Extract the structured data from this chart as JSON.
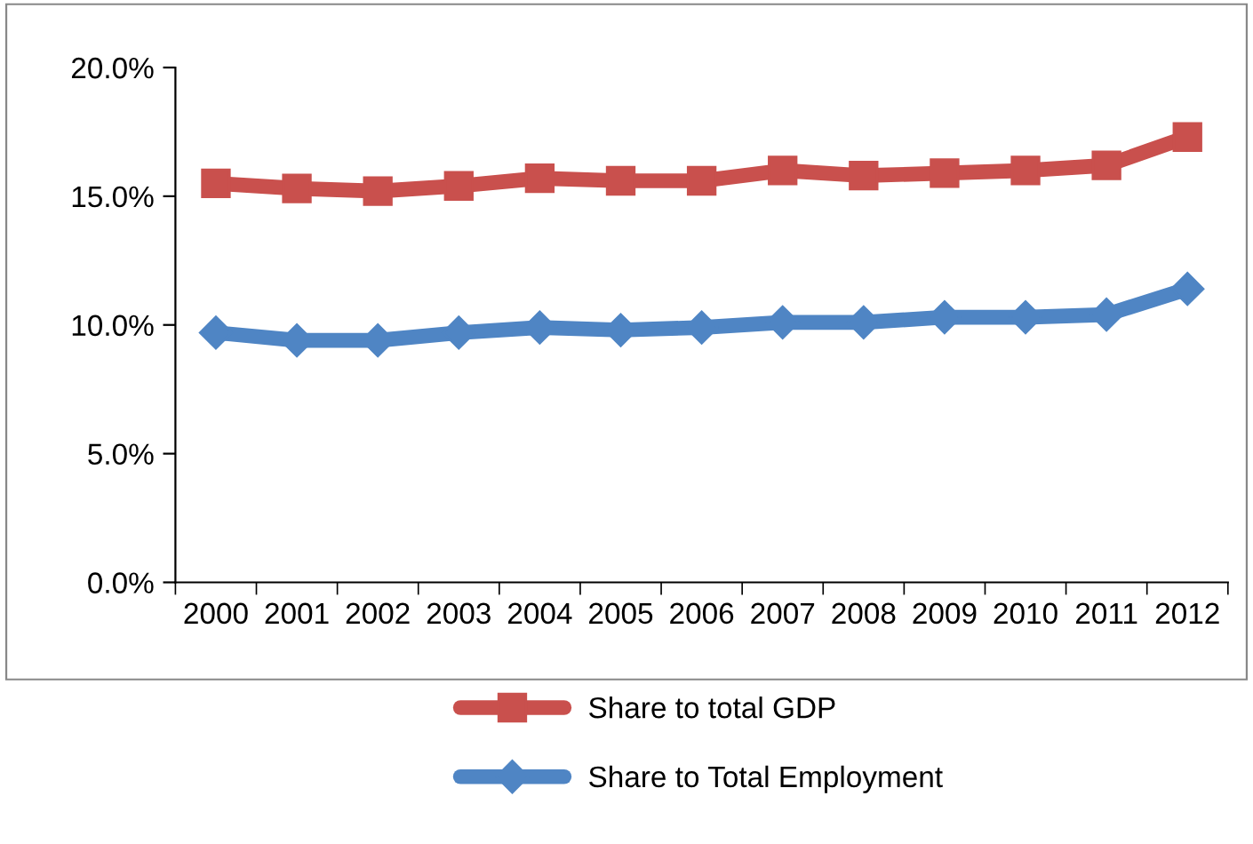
{
  "chart_data": {
    "type": "line",
    "categories": [
      "2000",
      "2001",
      "2002",
      "2003",
      "2004",
      "2005",
      "2006",
      "2007",
      "2008",
      "2009",
      "2010",
      "2011",
      "2012"
    ],
    "series": [
      {
        "name": "Share to total GDP",
        "color": "#c9504d",
        "marker": "square",
        "values": [
          15.5,
          15.3,
          15.2,
          15.4,
          15.7,
          15.6,
          15.6,
          16.0,
          15.8,
          15.9,
          16.0,
          16.2,
          17.3
        ]
      },
      {
        "name": "Share to Total Employment",
        "color": "#4f85c4",
        "marker": "diamond",
        "values": [
          9.7,
          9.4,
          9.4,
          9.7,
          9.9,
          9.8,
          9.9,
          10.1,
          10.1,
          10.3,
          10.3,
          10.4,
          11.4
        ]
      }
    ],
    "ylim": [
      0,
      20
    ],
    "yticks": [
      {
        "value": 0,
        "label": "0.0%"
      },
      {
        "value": 5,
        "label": "5.0%"
      },
      {
        "value": 10,
        "label": "10.0%"
      },
      {
        "value": 15,
        "label": "15.0%"
      },
      {
        "value": 20,
        "label": "20.0%"
      }
    ],
    "grid": false,
    "legend": "bottom",
    "line_style": "solid"
  }
}
